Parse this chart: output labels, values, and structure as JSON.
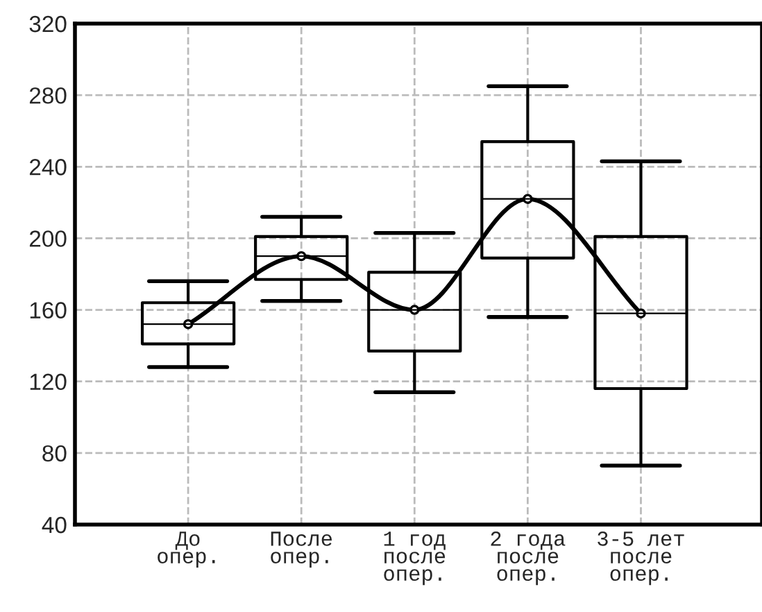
{
  "chart_data": {
    "type": "box",
    "categories": [
      "До\nопер.",
      "После\nопер.",
      "1 год\nпосле\nопер.",
      "2 года\nпосле\nопер.",
      "3-5 лет\nпосле\nопер."
    ],
    "boxes": [
      {
        "low": 128,
        "q1": 141,
        "median": 152,
        "q3": 164,
        "high": 176
      },
      {
        "low": 165,
        "q1": 177,
        "median": 190,
        "q3": 201,
        "high": 212
      },
      {
        "low": 114,
        "q1": 137,
        "median": 160,
        "q3": 181,
        "high": 203
      },
      {
        "low": 156,
        "q1": 189,
        "median": 222,
        "q3": 254,
        "high": 285
      },
      {
        "low": 73,
        "q1": 116,
        "median": 158,
        "q3": 201,
        "high": 243
      }
    ],
    "series": [
      {
        "type": "line",
        "color": "#000000",
        "marker": "circle",
        "values": [
          152,
          190,
          160,
          222,
          158
        ]
      }
    ],
    "ylim": [
      40,
      320
    ],
    "yticks": [
      40,
      80,
      120,
      160,
      200,
      240,
      280,
      320
    ],
    "grid": true,
    "legend": false
  }
}
